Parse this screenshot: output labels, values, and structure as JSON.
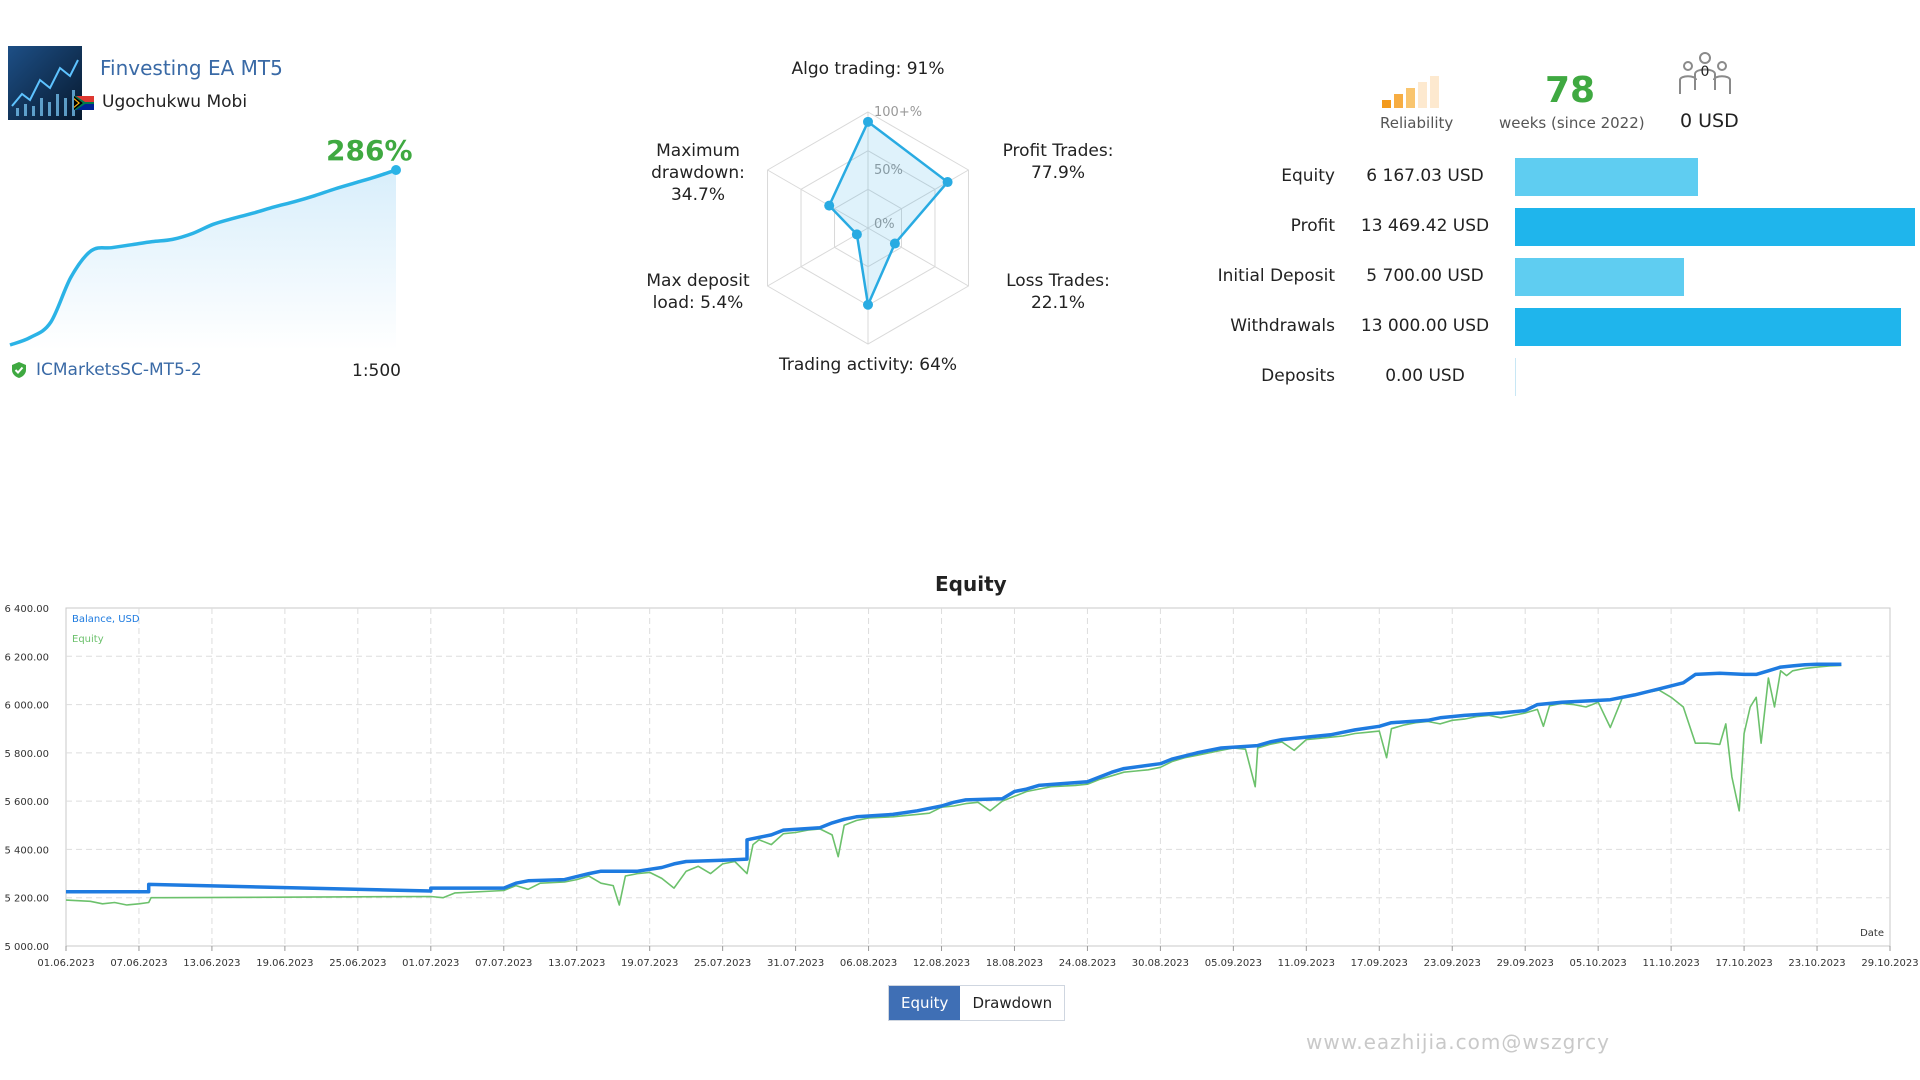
{
  "header": {
    "ea_name": "Finvesting EA MT5",
    "owner": "Ugochukwu Mobi",
    "growth": "286%",
    "server": "ICMarketsSC-MT5-2",
    "leverage": "1:500",
    "icons": {
      "avatar": "chart-avatar-icon",
      "flag": "south-africa-flag-icon",
      "verified": "shield-check-icon"
    }
  },
  "mini_growth": {
    "type": "area",
    "values": [
      0,
      10,
      30,
      90,
      125,
      129,
      133,
      137,
      140,
      148,
      160,
      168,
      175,
      183,
      190,
      198,
      207,
      215,
      223,
      232
    ],
    "color": "#2bb3e6"
  },
  "radar": {
    "type": "radar",
    "scale_labels": [
      "100+%",
      "50%",
      "0%"
    ],
    "axes": [
      {
        "label": [
          "Algo trading: 91%"
        ],
        "value": 0.91
      },
      {
        "label": [
          "Profit Trades:",
          "77.9%"
        ],
        "value": 0.779
      },
      {
        "label": [
          "Loss Trades:",
          "22.1%"
        ],
        "value": 0.221
      },
      {
        "label": [
          "Trading activity: 64%"
        ],
        "value": 0.64
      },
      {
        "label": [
          "Max deposit",
          "load: 5.4%"
        ],
        "value": 0.054
      },
      {
        "label": [
          "Maximum",
          "drawdown:",
          "34.7%"
        ],
        "value": 0.347
      }
    ],
    "color": "#29abe2"
  },
  "stats": {
    "reliability_label": "Reliability",
    "reliability_level": 3,
    "reliability_max": 5,
    "weeks": "78",
    "weeks_label": "weeks (since 2022)",
    "subscribers": "0",
    "subscription_amount": "0 USD",
    "rows": [
      {
        "label": "Equity",
        "value": "6 167.03 USD",
        "amount": 6167.03,
        "color": "#5fcdf1"
      },
      {
        "label": "Profit",
        "value": "13 469.42 USD",
        "amount": 13469.42,
        "color": "#1fb5ec"
      },
      {
        "label": "Initial Deposit",
        "value": "5 700.00 USD",
        "amount": 5700.0,
        "color": "#5fcdf1"
      },
      {
        "label": "Withdrawals",
        "value": "13 000.00 USD",
        "amount": 13000.0,
        "color": "#1fb5ec"
      },
      {
        "label": "Deposits",
        "value": "0.00 USD",
        "amount": 0.0,
        "color": "#5fcdf1"
      }
    ]
  },
  "chart_data": {
    "type": "line",
    "title": "Equity",
    "xlabel": "Date",
    "ylabel": "",
    "ylim": [
      5000,
      6400
    ],
    "y_ticks": [
      "6 400.00",
      "6 200.00",
      "6 000.00",
      "5 800.00",
      "5 600.00",
      "5 400.00",
      "5 200.00",
      "5 000.00"
    ],
    "y_tick_values": [
      6400,
      6200,
      6000,
      5800,
      5600,
      5400,
      5200,
      5000
    ],
    "x_ticks": [
      "01.06.2023",
      "07.06.2023",
      "13.06.2023",
      "19.06.2023",
      "25.06.2023",
      "01.07.2023",
      "07.07.2023",
      "13.07.2023",
      "19.07.2023",
      "25.07.2023",
      "31.07.2023",
      "06.08.2023",
      "12.08.2023",
      "18.08.2023",
      "24.08.2023",
      "30.08.2023",
      "05.09.2023",
      "11.09.2023",
      "17.09.2023",
      "23.09.2023",
      "29.09.2023",
      "05.10.2023",
      "11.10.2023",
      "17.10.2023",
      "23.10.2023",
      "29.10.2023"
    ],
    "x_days": [
      0,
      6,
      12,
      18,
      24,
      30,
      36,
      42,
      48,
      54,
      60,
      66,
      72,
      78,
      84,
      90,
      96,
      102,
      108,
      114,
      120,
      126,
      132,
      138,
      144,
      150
    ],
    "grid": true,
    "legend_placement": "top-left",
    "series": [
      {
        "name": "Balance, USD",
        "color": "#1e7be0",
        "points": [
          [
            0,
            5225
          ],
          [
            6.8,
            5225
          ],
          [
            6.8,
            5255
          ],
          [
            30,
            5228
          ],
          [
            30,
            5240
          ],
          [
            36,
            5240
          ],
          [
            37,
            5260
          ],
          [
            38,
            5270
          ],
          [
            41,
            5275
          ],
          [
            43,
            5300
          ],
          [
            44,
            5310
          ],
          [
            47,
            5310
          ],
          [
            49,
            5325
          ],
          [
            50,
            5340
          ],
          [
            51,
            5350
          ],
          [
            54,
            5355
          ],
          [
            56,
            5360
          ],
          [
            56,
            5440
          ],
          [
            58,
            5460
          ],
          [
            59,
            5480
          ],
          [
            62,
            5490
          ],
          [
            63,
            5510
          ],
          [
            64,
            5525
          ],
          [
            65,
            5535
          ],
          [
            68,
            5545
          ],
          [
            70,
            5560
          ],
          [
            72,
            5580
          ],
          [
            73,
            5595
          ],
          [
            74,
            5605
          ],
          [
            77,
            5610
          ],
          [
            78,
            5640
          ],
          [
            79,
            5650
          ],
          [
            80,
            5665
          ],
          [
            84,
            5680
          ],
          [
            85,
            5700
          ],
          [
            86,
            5720
          ],
          [
            87,
            5735
          ],
          [
            90,
            5755
          ],
          [
            91,
            5775
          ],
          [
            93,
            5800
          ],
          [
            95,
            5820
          ],
          [
            98,
            5830
          ],
          [
            99,
            5845
          ],
          [
            100,
            5855
          ],
          [
            101,
            5860
          ],
          [
            104,
            5875
          ],
          [
            105,
            5885
          ],
          [
            106,
            5895
          ],
          [
            108,
            5910
          ],
          [
            109,
            5925
          ],
          [
            112,
            5935
          ],
          [
            113,
            5945
          ],
          [
            115,
            5955
          ],
          [
            118,
            5965
          ],
          [
            120,
            5975
          ],
          [
            121,
            6000
          ],
          [
            123,
            6010
          ],
          [
            127,
            6020
          ],
          [
            129,
            6040
          ],
          [
            131,
            6065
          ],
          [
            133,
            6090
          ],
          [
            134,
            6125
          ],
          [
            136,
            6130
          ],
          [
            138,
            6125
          ],
          [
            139,
            6125
          ],
          [
            140,
            6140
          ],
          [
            141,
            6155
          ],
          [
            142,
            6160
          ],
          [
            143,
            6165
          ],
          [
            144,
            6167
          ],
          [
            146,
            6167
          ]
        ]
      },
      {
        "name": "Equity",
        "color": "#6cc16c",
        "points": [
          [
            0,
            5190
          ],
          [
            2,
            5185
          ],
          [
            3,
            5175
          ],
          [
            4,
            5180
          ],
          [
            5,
            5170
          ],
          [
            6,
            5175
          ],
          [
            6.8,
            5180
          ],
          [
            7,
            5200
          ],
          [
            8,
            5200
          ],
          [
            30,
            5205
          ],
          [
            31,
            5200
          ],
          [
            32,
            5220
          ],
          [
            36,
            5230
          ],
          [
            37,
            5250
          ],
          [
            38,
            5235
          ],
          [
            39,
            5260
          ],
          [
            41,
            5265
          ],
          [
            42,
            5275
          ],
          [
            43,
            5290
          ],
          [
            44,
            5260
          ],
          [
            45,
            5250
          ],
          [
            45.5,
            5170
          ],
          [
            46,
            5290
          ],
          [
            47,
            5300
          ],
          [
            48,
            5305
          ],
          [
            49,
            5280
          ],
          [
            50,
            5240
          ],
          [
            51,
            5310
          ],
          [
            52,
            5330
          ],
          [
            53,
            5300
          ],
          [
            54,
            5340
          ],
          [
            55,
            5350
          ],
          [
            56,
            5300
          ],
          [
            56.5,
            5420
          ],
          [
            57,
            5440
          ],
          [
            58,
            5420
          ],
          [
            59,
            5465
          ],
          [
            60,
            5470
          ],
          [
            61,
            5480
          ],
          [
            62,
            5485
          ],
          [
            63,
            5460
          ],
          [
            63.5,
            5370
          ],
          [
            64,
            5500
          ],
          [
            65,
            5520
          ],
          [
            66,
            5530
          ],
          [
            68,
            5535
          ],
          [
            69,
            5540
          ],
          [
            70,
            5545
          ],
          [
            71,
            5550
          ],
          [
            72,
            5575
          ],
          [
            73,
            5580
          ],
          [
            74,
            5590
          ],
          [
            75,
            5595
          ],
          [
            76,
            5560
          ],
          [
            77,
            5600
          ],
          [
            78,
            5620
          ],
          [
            79,
            5640
          ],
          [
            80,
            5650
          ],
          [
            81,
            5660
          ],
          [
            83,
            5665
          ],
          [
            84,
            5670
          ],
          [
            85,
            5690
          ],
          [
            86,
            5705
          ],
          [
            87,
            5720
          ],
          [
            88,
            5725
          ],
          [
            89,
            5730
          ],
          [
            90,
            5740
          ],
          [
            91,
            5765
          ],
          [
            92,
            5780
          ],
          [
            93,
            5790
          ],
          [
            94,
            5800
          ],
          [
            95,
            5810
          ],
          [
            96,
            5820
          ],
          [
            97,
            5815
          ],
          [
            97.8,
            5660
          ],
          [
            98,
            5820
          ],
          [
            99,
            5835
          ],
          [
            100,
            5845
          ],
          [
            101,
            5810
          ],
          [
            102,
            5855
          ],
          [
            103,
            5860
          ],
          [
            104,
            5865
          ],
          [
            105,
            5870
          ],
          [
            106,
            5880
          ],
          [
            107,
            5885
          ],
          [
            108,
            5890
          ],
          [
            108.6,
            5780
          ],
          [
            109,
            5900
          ],
          [
            110,
            5915
          ],
          [
            111,
            5925
          ],
          [
            112,
            5930
          ],
          [
            113,
            5920
          ],
          [
            114,
            5935
          ],
          [
            115,
            5940
          ],
          [
            116,
            5950
          ],
          [
            117,
            5955
          ],
          [
            118,
            5945
          ],
          [
            119,
            5955
          ],
          [
            120,
            5965
          ],
          [
            121,
            5980
          ],
          [
            121.5,
            5910
          ],
          [
            122,
            5995
          ],
          [
            123,
            6005
          ],
          [
            124,
            6000
          ],
          [
            125,
            5990
          ],
          [
            126,
            6010
          ],
          [
            127,
            5905
          ],
          [
            128,
            6030
          ],
          [
            129,
            6040
          ],
          [
            130,
            6050
          ],
          [
            131,
            6060
          ],
          [
            132,
            6030
          ],
          [
            133,
            5990
          ],
          [
            134,
            5840
          ],
          [
            135,
            5840
          ],
          [
            136,
            5835
          ],
          [
            136.5,
            5920
          ],
          [
            137,
            5700
          ],
          [
            137.6,
            5560
          ],
          [
            138,
            5880
          ],
          [
            138.5,
            5990
          ],
          [
            139,
            6030
          ],
          [
            139.4,
            5840
          ],
          [
            140,
            6110
          ],
          [
            140.5,
            5990
          ],
          [
            141,
            6140
          ],
          [
            141.5,
            6120
          ],
          [
            142,
            6140
          ],
          [
            143,
            6150
          ],
          [
            144,
            6155
          ],
          [
            145,
            6160
          ],
          [
            146,
            6162
          ]
        ]
      }
    ]
  },
  "tabs": [
    {
      "label": "Equity",
      "active": true
    },
    {
      "label": "Drawdown",
      "active": false
    }
  ],
  "watermark": "www.eazhijia.com@wszgrcy"
}
